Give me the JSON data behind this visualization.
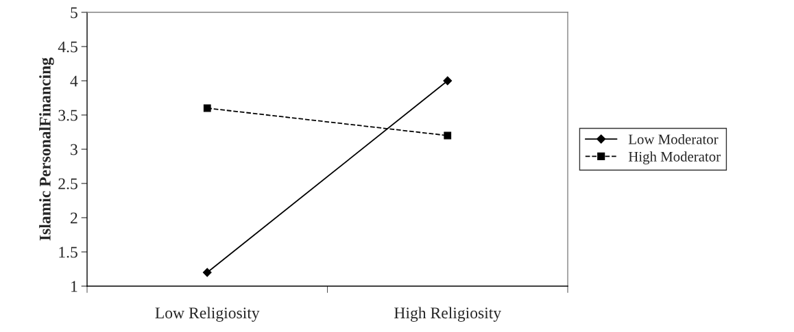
{
  "chart_data": {
    "type": "line",
    "ylabel": "Islamic PersonalFinancing",
    "categories": [
      "Low Religiosity",
      "High Religiosity"
    ],
    "series": [
      {
        "name": "Low Moderator",
        "color": "#000000",
        "values": [
          1.2,
          4.0
        ],
        "marker": "diamond",
        "line_style": "solid"
      },
      {
        "name": "High Moderator",
        "color": "#000000",
        "values": [
          3.6,
          3.2
        ],
        "marker": "square",
        "line_style": "dashed"
      }
    ],
    "ylim": [
      1,
      5
    ],
    "yticks": [
      1,
      1.5,
      2,
      2.5,
      3,
      3.5,
      4,
      4.5,
      5
    ],
    "grid": false,
    "legend": "right"
  }
}
